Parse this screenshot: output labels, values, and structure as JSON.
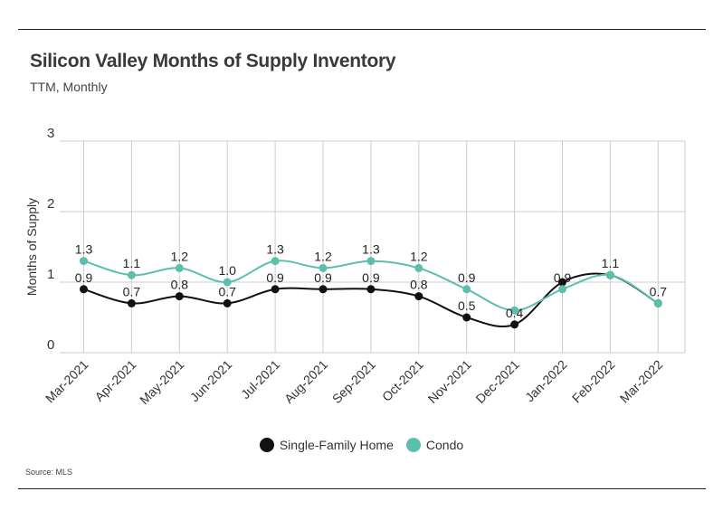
{
  "header": {
    "title": "Silicon Valley Months of Supply Inventory",
    "subtitle": "TTM, Monthly"
  },
  "source": "Source:  MLS",
  "colors": {
    "single_family": "#111111",
    "condo": "#5cbfad",
    "grid": "#cccccc"
  },
  "chart_data": {
    "type": "line",
    "title": "Silicon Valley Months of Supply Inventory",
    "subtitle": "TTM, Monthly",
    "xlabel": "",
    "ylabel": "Months of Supply",
    "ylim": [
      0,
      3
    ],
    "yticks": [
      "0",
      "1",
      "2",
      "3"
    ],
    "grid": true,
    "legend_position": "bottom",
    "categories": [
      "Mar-2021",
      "Apr-2021",
      "May-2021",
      "Jun-2021",
      "Jul-2021",
      "Aug-2021",
      "Sep-2021",
      "Oct-2021",
      "Nov-2021",
      "Dec-2021",
      "Jan-2022",
      "Feb-2022",
      "Mar-2022"
    ],
    "series": [
      {
        "name": "Single-Family Home",
        "color": "#111111",
        "values": [
          0.9,
          0.7,
          0.8,
          0.7,
          0.9,
          0.9,
          0.9,
          0.8,
          0.5,
          0.4,
          1.0,
          1.1,
          0.7
        ],
        "labels": [
          "0.9",
          "0.7",
          "0.8",
          "0.7",
          "0.9",
          "0.9",
          "0.9",
          "0.8",
          "0.5",
          "0.4",
          "",
          "",
          ""
        ]
      },
      {
        "name": "Condo",
        "color": "#5cbfad",
        "values": [
          1.3,
          1.1,
          1.2,
          1.0,
          1.3,
          1.2,
          1.3,
          1.2,
          0.9,
          0.6,
          0.9,
          1.1,
          0.7
        ],
        "labels": [
          "1.3",
          "1.1",
          "1.2",
          "1.0",
          "1.3",
          "1.2",
          "1.3",
          "1.2",
          "0.9",
          "",
          "0.9",
          "1.1",
          "0.7"
        ]
      }
    ]
  }
}
